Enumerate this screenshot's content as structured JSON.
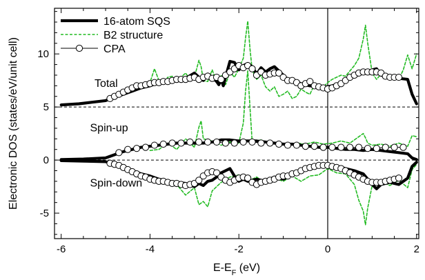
{
  "chart_data": {
    "type": "line",
    "title": "",
    "xlabel": "E-E",
    "xlabel_sub": "F",
    "xlabel_unit": " (eV)",
    "ylabel": "Electronic DOS (states/eV/unit cell)",
    "xlim": [
      -6.15,
      2.05
    ],
    "ylim": [
      -7.4,
      14.3
    ],
    "xticks": [
      -6,
      -4,
      -2,
      0,
      2
    ],
    "yticks": [
      -5,
      0,
      5,
      10
    ],
    "grid": false,
    "legend_position": "top-left",
    "reference_lines": {
      "horizontal": [
        5,
        0
      ],
      "vertical": [
        0
      ]
    },
    "annotations": [
      {
        "text": "Total",
        "x": -5.25,
        "y": 6.9
      },
      {
        "text": "Spin-up",
        "x": -5.35,
        "y": 2.7
      },
      {
        "text": "Spin-down",
        "x": -5.35,
        "y": -2.5
      }
    ],
    "colors": {
      "sqs": "#000000",
      "b2": "#22bb22",
      "cpa": "#000000",
      "reference": "#000000"
    },
    "series": [
      {
        "name": "16-atom SQS",
        "style": "thick-solid",
        "curves": [
          {
            "x": [
              -6.0,
              -5.6,
              -5.3,
              -5.0,
              -4.8,
              -4.6,
              -4.4,
              -4.2,
              -4.0,
              -3.8,
              -3.6,
              -3.4,
              -3.2,
              -3.0,
              -2.9,
              -2.8,
              -2.7,
              -2.6,
              -2.5,
              -2.45,
              -2.4,
              -2.35,
              -2.3,
              -2.2,
              -2.1,
              -2.0,
              -1.9,
              -1.8,
              -1.7,
              -1.6,
              -1.5,
              -1.4,
              -1.3,
              -1.2,
              -1.1,
              -1.0,
              -0.9,
              -0.8,
              -0.6,
              -0.4,
              -0.2,
              0.0,
              0.2,
              0.4,
              0.6,
              0.8,
              1.0,
              1.1,
              1.2,
              1.4,
              1.6,
              1.8,
              1.9,
              2.0
            ],
            "y": [
              5.2,
              5.3,
              5.45,
              5.6,
              5.9,
              6.2,
              6.5,
              6.8,
              7.0,
              7.3,
              7.4,
              7.5,
              7.7,
              8.2,
              7.8,
              7.5,
              8.1,
              7.8,
              7.4,
              7.1,
              7.6,
              7.0,
              7.8,
              9.3,
              9.2,
              8.5,
              8.9,
              9.1,
              8.8,
              8.1,
              8.7,
              8.3,
              8.6,
              8.8,
              8.4,
              8.0,
              7.6,
              7.5,
              7.2,
              7.0,
              6.9,
              6.9,
              7.1,
              7.5,
              7.9,
              8.2,
              8.5,
              8.6,
              8.0,
              7.8,
              7.7,
              7.6,
              6.2,
              5.3
            ]
          },
          {
            "x": [
              -6.0,
              -5.5,
              -5.0,
              -4.8,
              -4.6,
              -4.4,
              -4.2,
              -4.0,
              -3.8,
              -3.6,
              -3.4,
              -3.2,
              -3.0,
              -2.8,
              -2.6,
              -2.4,
              -2.2,
              -2.0,
              -1.8,
              -1.6,
              -1.4,
              -1.2,
              -1.0,
              -0.8,
              -0.6,
              -0.4,
              -0.2,
              0.0,
              0.2,
              0.4,
              0.6,
              0.8,
              1.0,
              1.2,
              1.4,
              1.6,
              1.8,
              1.9,
              2.0
            ],
            "y": [
              0.05,
              0.1,
              0.2,
              0.5,
              0.8,
              1.0,
              1.2,
              1.3,
              1.4,
              1.5,
              1.6,
              1.6,
              1.6,
              1.6,
              1.7,
              1.9,
              1.9,
              1.8,
              1.8,
              1.8,
              1.7,
              1.6,
              1.5,
              1.5,
              1.4,
              1.3,
              1.2,
              1.2,
              1.1,
              1.0,
              1.0,
              0.9,
              1.0,
              0.9,
              0.8,
              0.7,
              0.6,
              0.2,
              0.05
            ]
          },
          {
            "x": [
              -6.0,
              -5.5,
              -5.0,
              -4.8,
              -4.6,
              -4.4,
              -4.2,
              -4.0,
              -3.8,
              -3.6,
              -3.4,
              -3.2,
              -3.0,
              -2.9,
              -2.8,
              -2.7,
              -2.6,
              -2.5,
              -2.4,
              -2.3,
              -2.2,
              -2.1,
              -2.0,
              -1.9,
              -1.8,
              -1.6,
              -1.4,
              -1.2,
              -1.0,
              -0.8,
              -0.6,
              -0.4,
              -0.2,
              0.0,
              0.2,
              0.4,
              0.6,
              0.8,
              0.9,
              1.0,
              1.1,
              1.2,
              1.4,
              1.6,
              1.8,
              1.9,
              2.0
            ],
            "y": [
              -0.05,
              -0.1,
              -0.15,
              -0.4,
              -0.8,
              -1.0,
              -1.3,
              -1.5,
              -1.8,
              -2.0,
              -2.1,
              -2.2,
              -2.5,
              -2.2,
              -2.4,
              -2.0,
              -1.9,
              -1.6,
              -1.2,
              -1.0,
              -0.8,
              -1.5,
              -2.0,
              -1.8,
              -2.0,
              -1.8,
              -2.0,
              -1.6,
              -1.8,
              -1.4,
              -1.0,
              -0.8,
              -0.6,
              -0.6,
              -0.6,
              -0.8,
              -1.0,
              -1.3,
              -1.8,
              -2.3,
              -2.7,
              -2.3,
              -2.1,
              -2.3,
              -1.7,
              -0.6,
              -0.2
            ]
          }
        ]
      },
      {
        "name": "B2 structure",
        "style": "dashed",
        "curves": [
          {
            "x": [
              -4.5,
              -4.3,
              -4.1,
              -4.0,
              -3.9,
              -3.8,
              -3.7,
              -3.6,
              -3.5,
              -3.4,
              -3.3,
              -3.2,
              -3.1,
              -3.0,
              -2.9,
              -2.85,
              -2.8,
              -2.7,
              -2.6,
              -2.5,
              -2.4,
              -2.3,
              -2.2,
              -2.1,
              -2.0,
              -1.9,
              -1.85,
              -1.8,
              -1.75,
              -1.7,
              -1.6,
              -1.5,
              -1.4,
              -1.3,
              -1.2,
              -1.1,
              -1.0,
              -0.9,
              -0.8,
              -0.7,
              -0.6,
              -0.5,
              -0.4,
              -0.3,
              -0.2,
              -0.1,
              0.0,
              0.1,
              0.2,
              0.3,
              0.4,
              0.5,
              0.6,
              0.7,
              0.8,
              0.85,
              0.9,
              1.0,
              1.1,
              1.2,
              1.3,
              1.4,
              1.5,
              1.6,
              1.7,
              1.8,
              1.9,
              2.0
            ],
            "y": [
              6.3,
              6.6,
              7.0,
              7.3,
              8.6,
              7.5,
              7.2,
              7.8,
              7.9,
              7.4,
              7.8,
              8.2,
              7.6,
              7.8,
              9.4,
              8.8,
              7.5,
              7.4,
              8.5,
              7.3,
              8.0,
              7.1,
              8.3,
              7.8,
              8.6,
              9.6,
              11.5,
              13.1,
              10.5,
              8.5,
              7.6,
              8.0,
              6.9,
              6.5,
              6.9,
              6.0,
              6.2,
              6.5,
              5.8,
              6.0,
              6.7,
              6.4,
              6.2,
              7.1,
              6.7,
              6.9,
              7.3,
              7.6,
              7.8,
              8.0,
              7.9,
              8.4,
              8.9,
              9.6,
              11.4,
              12.7,
              11.0,
              8.2,
              7.6,
              8.1,
              7.7,
              7.8,
              7.7,
              7.6,
              8.5,
              9.9,
              8.6,
              10.0
            ]
          },
          {
            "x": [
              -4.0,
              -3.8,
              -3.6,
              -3.4,
              -3.2,
              -3.0,
              -2.9,
              -2.85,
              -2.8,
              -2.6,
              -2.4,
              -2.2,
              -2.0,
              -1.9,
              -1.85,
              -1.8,
              -1.75,
              -1.7,
              -1.5,
              -1.3,
              -1.1,
              -0.9,
              -0.7,
              -0.5,
              -0.3,
              -0.1,
              0.1,
              0.3,
              0.5,
              0.7,
              0.8,
              0.85,
              0.9,
              1.0,
              1.2,
              1.4,
              1.6,
              1.8,
              1.9,
              2.0
            ],
            "y": [
              0.9,
              1.0,
              1.6,
              1.0,
              2.0,
              1.2,
              3.1,
              3.7,
              2.0,
              1.8,
              1.4,
              1.7,
              1.6,
              3.5,
              6.5,
              8.4,
              5.0,
              1.7,
              1.9,
              1.5,
              1.6,
              1.4,
              1.6,
              1.5,
              1.7,
              1.5,
              1.6,
              1.8,
              1.6,
              2.2,
              2.5,
              2.1,
              1.6,
              1.4,
              1.5,
              1.3,
              1.6,
              1.3,
              2.3,
              2.2
            ]
          },
          {
            "x": [
              -4.0,
              -3.8,
              -3.6,
              -3.4,
              -3.2,
              -3.0,
              -2.9,
              -2.8,
              -2.7,
              -2.6,
              -2.4,
              -2.2,
              -2.0,
              -1.8,
              -1.6,
              -1.4,
              -1.2,
              -1.0,
              -0.8,
              -0.6,
              -0.4,
              -0.2,
              0.0,
              0.2,
              0.4,
              0.6,
              0.7,
              0.8,
              0.85,
              0.9,
              1.0,
              1.2,
              1.4,
              1.6,
              1.8,
              1.9,
              2.0
            ],
            "y": [
              -1.8,
              -2.2,
              -2.0,
              -2.3,
              -3.3,
              -2.6,
              -4.2,
              -3.9,
              -4.4,
              -2.9,
              -2.1,
              -1.6,
              -1.4,
              -2.0,
              -1.6,
              -2.2,
              -1.7,
              -2.0,
              -1.5,
              -2.0,
              -1.5,
              -1.4,
              -0.8,
              -1.2,
              -1.3,
              -2.3,
              -3.8,
              -4.8,
              -6.1,
              -4.5,
              -2.4,
              -2.0,
              -2.4,
              -1.9,
              -2.6,
              -0.9,
              -0.4
            ]
          }
        ]
      },
      {
        "name": "CPA",
        "style": "line-open-circles",
        "curves": [
          {
            "x": [
              -4.9,
              -4.8,
              -4.7,
              -4.6,
              -4.5,
              -4.4,
              -4.3,
              -4.2,
              -4.1,
              -4.0,
              -3.9,
              -3.8,
              -3.7,
              -3.6,
              -3.5,
              -3.4,
              -3.3,
              -3.2,
              -3.1,
              -3.0,
              -2.9,
              -2.8,
              -2.7,
              -2.6,
              -2.5,
              -2.4,
              -2.3,
              -2.2,
              -2.1,
              -2.0,
              -1.9,
              -1.8,
              -1.7,
              -1.6,
              -1.5,
              -1.4,
              -1.3,
              -1.2,
              -1.1,
              -1.0,
              -0.9,
              -0.8,
              -0.7,
              -0.6,
              -0.5,
              -0.4,
              -0.3,
              -0.2,
              -0.1,
              0.0,
              0.1,
              0.2,
              0.3,
              0.4,
              0.5,
              0.6,
              0.7,
              0.8,
              0.9,
              1.0,
              1.1,
              1.2,
              1.3,
              1.4,
              1.5,
              1.6
            ],
            "y": [
              5.8,
              6.0,
              6.2,
              6.4,
              6.6,
              6.8,
              7.0,
              7.0,
              7.1,
              7.2,
              7.3,
              7.3,
              7.4,
              7.4,
              7.5,
              7.6,
              7.6,
              7.6,
              7.7,
              7.8,
              7.6,
              7.8,
              7.9,
              7.7,
              7.8,
              7.6,
              8.0,
              8.3,
              8.6,
              8.9,
              8.7,
              8.9,
              8.6,
              8.0,
              8.3,
              8.0,
              8.1,
              8.2,
              8.2,
              7.8,
              7.5,
              7.5,
              7.3,
              7.0,
              7.2,
              7.4,
              7.0,
              6.9,
              6.8,
              6.7,
              6.8,
              7.0,
              7.2,
              7.5,
              7.8,
              8.0,
              8.2,
              8.3,
              8.3,
              8.3,
              8.3,
              8.2,
              7.9,
              7.8,
              7.8,
              7.8
            ]
          },
          {
            "x": [
              -4.7,
              -4.5,
              -4.3,
              -4.1,
              -3.9,
              -3.7,
              -3.5,
              -3.3,
              -3.1,
              -2.9,
              -2.7,
              -2.5,
              -2.3,
              -2.1,
              -1.9,
              -1.7,
              -1.5,
              -1.3,
              -1.1,
              -0.9,
              -0.7,
              -0.5,
              -0.3,
              -0.1,
              0.1,
              0.3,
              0.5,
              0.7,
              0.9,
              1.1,
              1.3,
              1.5,
              1.7
            ],
            "y": [
              0.7,
              1.0,
              1.1,
              1.2,
              1.4,
              1.5,
              1.6,
              1.6,
              1.7,
              1.7,
              1.7,
              1.7,
              1.6,
              1.6,
              1.7,
              1.7,
              1.6,
              1.6,
              1.5,
              1.4,
              1.4,
              1.3,
              1.3,
              1.2,
              1.2,
              1.2,
              1.2,
              1.2,
              1.1,
              1.1,
              1.2,
              1.2,
              1.2
            ]
          },
          {
            "x": [
              -4.9,
              -4.8,
              -4.7,
              -4.6,
              -4.5,
              -4.4,
              -4.3,
              -4.2,
              -4.1,
              -4.0,
              -3.9,
              -3.8,
              -3.7,
              -3.6,
              -3.5,
              -3.4,
              -3.3,
              -3.2,
              -3.1,
              -3.0,
              -2.9,
              -2.8,
              -2.7,
              -2.6,
              -2.5,
              -2.4,
              -2.3,
              -2.2,
              -2.1,
              -2.0,
              -1.9,
              -1.8,
              -1.7,
              -1.6,
              -1.5,
              -1.4,
              -1.3,
              -1.2,
              -1.1,
              -1.0,
              -0.9,
              -0.8,
              -0.7,
              -0.6,
              -0.5,
              -0.4,
              -0.3,
              -0.2,
              -0.1,
              0.0,
              0.1,
              0.2,
              0.3,
              0.4,
              0.5,
              0.6,
              0.7,
              0.8,
              0.9,
              1.0,
              1.1,
              1.2,
              1.3,
              1.4,
              1.5,
              1.6
            ],
            "y": [
              -0.3,
              -0.4,
              -0.5,
              -0.7,
              -0.9,
              -1.1,
              -1.3,
              -1.5,
              -1.6,
              -1.8,
              -1.9,
              -2.0,
              -2.0,
              -2.1,
              -2.2,
              -2.2,
              -2.3,
              -2.4,
              -2.3,
              -2.2,
              -1.9,
              -1.5,
              -1.2,
              -1.1,
              -1.2,
              -1.6,
              -1.9,
              -2.1,
              -1.9,
              -1.7,
              -1.6,
              -1.7,
              -2.1,
              -2.3,
              -2.1,
              -2.0,
              -1.9,
              -1.8,
              -1.6,
              -1.5,
              -1.5,
              -1.3,
              -1.2,
              -1.0,
              -0.8,
              -0.7,
              -0.6,
              -0.5,
              -0.5,
              -0.5,
              -0.6,
              -0.7,
              -0.8,
              -1.0,
              -1.2,
              -1.4,
              -1.6,
              -1.8,
              -2.0,
              -2.1,
              -2.1,
              -2.1,
              -2.0,
              -1.9,
              -1.8,
              -1.7
            ]
          }
        ]
      }
    ]
  }
}
